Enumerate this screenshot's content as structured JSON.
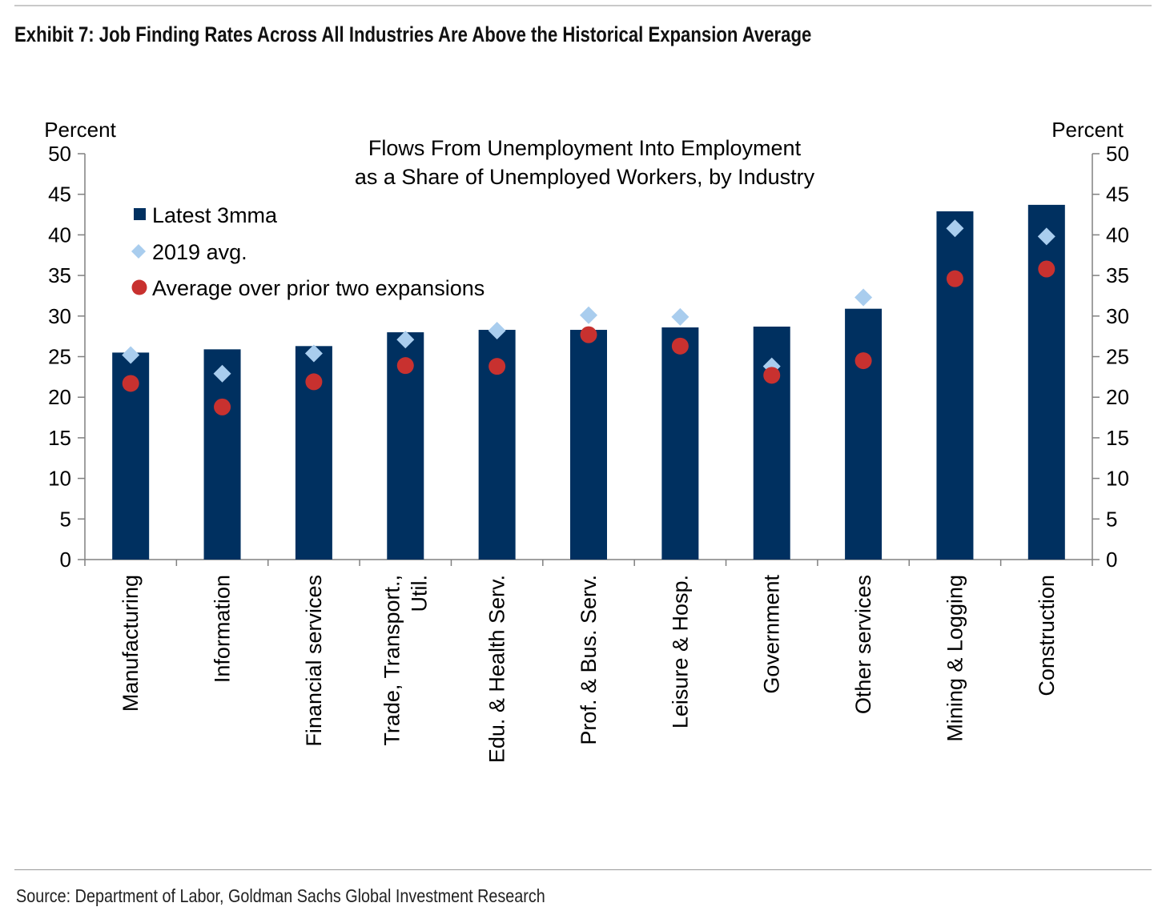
{
  "exhibit_title": "Exhibit 7: Job Finding Rates Across All Industries Are Above the Historical Expansion Average",
  "source": "Source: Department of Labor, Goldman Sachs Global Investment Research",
  "chart_data": {
    "type": "bar",
    "title_lines": [
      "Flows From Unemployment Into Employment",
      "as a Share of Unemployed Workers, by Industry"
    ],
    "ylabel_left": "Percent",
    "ylabel_right": "Percent",
    "ylim": [
      0,
      50
    ],
    "yticks": [
      0,
      5,
      10,
      15,
      20,
      25,
      30,
      35,
      40,
      45,
      50
    ],
    "legend_position": "top-left",
    "categories": [
      [
        "Manufacturing"
      ],
      [
        "Information"
      ],
      [
        "Financial services"
      ],
      [
        "Trade, Transport.,",
        "Util."
      ],
      [
        "Edu. & Health Serv."
      ],
      [
        "Prof. & Bus. Serv."
      ],
      [
        "Leisure & Hosp."
      ],
      [
        "Government"
      ],
      [
        "Other services"
      ],
      [
        "Mining & Logging"
      ],
      [
        "Construction"
      ]
    ],
    "series": [
      {
        "name": "Latest 3mma",
        "kind": "bar",
        "color": "#003060",
        "values": [
          25.5,
          25.9,
          26.3,
          28.0,
          28.3,
          28.3,
          28.6,
          28.7,
          30.9,
          42.9,
          43.7
        ]
      },
      {
        "name": "2019 avg.",
        "kind": "diamond",
        "color": "#a9cdee",
        "values": [
          25.2,
          22.9,
          25.4,
          27.1,
          28.2,
          30.1,
          29.9,
          23.8,
          32.3,
          40.8,
          39.8
        ]
      },
      {
        "name": "Average over prior two expansions",
        "kind": "circle",
        "color": "#c8312f",
        "values": [
          21.7,
          18.8,
          21.9,
          23.9,
          23.8,
          27.7,
          26.3,
          22.7,
          24.5,
          34.6,
          35.8
        ]
      }
    ]
  }
}
